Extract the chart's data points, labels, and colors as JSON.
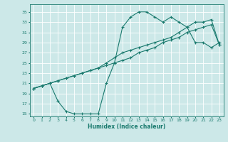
{
  "xlabel": "Humidex (Indice chaleur)",
  "bg_color": "#cce8e8",
  "grid_color": "#ffffff",
  "line_color": "#1a7a6e",
  "xlim": [
    -0.5,
    23.5
  ],
  "ylim": [
    14.5,
    36.5
  ],
  "xticks": [
    0,
    1,
    2,
    3,
    4,
    5,
    6,
    7,
    8,
    9,
    10,
    11,
    12,
    13,
    14,
    15,
    16,
    17,
    18,
    19,
    20,
    21,
    22,
    23
  ],
  "yticks": [
    15,
    17,
    19,
    21,
    23,
    25,
    27,
    29,
    31,
    33,
    35
  ],
  "curve1_x": [
    0,
    1,
    2,
    3,
    4,
    5,
    6,
    7,
    8,
    9,
    10,
    11,
    12,
    13,
    14,
    15,
    16,
    17,
    18,
    19,
    20,
    21,
    22,
    23
  ],
  "curve1_y": [
    20,
    20.5,
    21,
    17.5,
    15.5,
    15,
    15,
    15,
    15,
    21,
    25,
    32,
    34,
    35,
    35,
    34,
    33,
    34,
    33,
    32,
    29,
    29,
    28,
    29
  ],
  "curve2_x": [
    0,
    1,
    2,
    3,
    4,
    5,
    6,
    7,
    8,
    9,
    10,
    11,
    12,
    13,
    14,
    15,
    16,
    17,
    18,
    19,
    20,
    21,
    22,
    23
  ],
  "curve2_y": [
    20,
    20.5,
    21,
    21.5,
    22,
    22.5,
    23,
    23.5,
    24,
    24.5,
    25,
    25.5,
    26,
    27,
    27.5,
    28,
    29,
    29.5,
    30,
    31,
    31.5,
    32,
    32.5,
    28.5
  ],
  "curve3_x": [
    0,
    1,
    2,
    3,
    4,
    5,
    6,
    7,
    8,
    9,
    10,
    11,
    12,
    13,
    14,
    15,
    16,
    17,
    18,
    19,
    20,
    21,
    22,
    23
  ],
  "curve3_y": [
    20,
    20.5,
    21,
    21.5,
    22,
    22.5,
    23,
    23.5,
    24,
    25,
    26,
    27,
    27.5,
    28,
    28.5,
    29,
    29.5,
    30,
    31,
    32,
    33,
    33,
    33.5,
    28.5
  ]
}
